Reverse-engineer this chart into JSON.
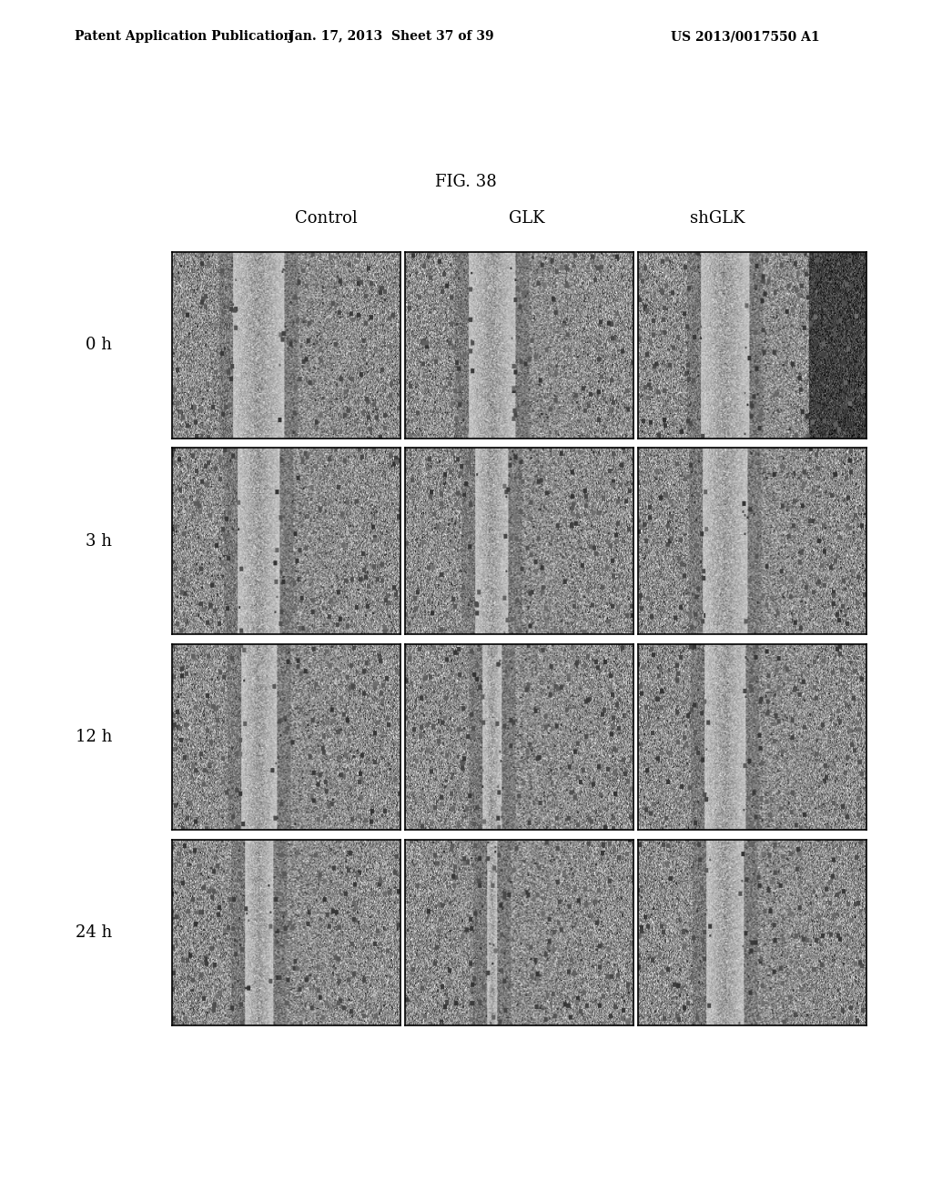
{
  "header_left": "Patent Application Publication",
  "header_mid": "Jan. 17, 2013  Sheet 37 of 39",
  "header_right": "US 2013/0017550 A1",
  "fig_label": "FIG. 38",
  "col_labels": [
    "Control",
    "GLK",
    "shGLK"
  ],
  "row_labels": [
    "0 h",
    "3 h",
    "12 h",
    "24 h"
  ],
  "background_color": "#ffffff",
  "header_fontsize": 10,
  "col_label_fontsize": 13,
  "row_label_fontsize": 13,
  "fig_label_fontsize": 13
}
